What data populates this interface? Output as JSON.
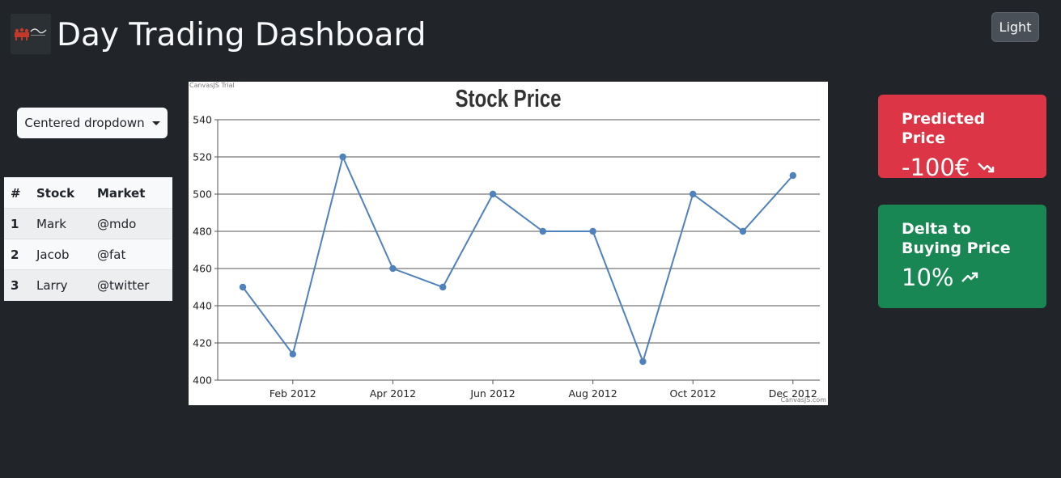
{
  "app": {
    "title": "Day Trading Dashboard",
    "theme_toggle_label": "Light"
  },
  "dropdown": {
    "label": "Centered dropdown"
  },
  "table": {
    "headers": [
      "#",
      "Stock",
      "Market"
    ],
    "rows": [
      [
        "1",
        "Mark",
        "@mdo"
      ],
      [
        "2",
        "Jacob",
        "@fat"
      ],
      [
        "3",
        "Larry",
        "@twitter"
      ]
    ]
  },
  "chart_watermark_top": "CanvasJS Trial",
  "chart_watermark_bottom": "CanvasJS.com",
  "chart_data": {
    "type": "line",
    "title": "Stock Price",
    "x": [
      "2012-01",
      "2012-02",
      "2012-03",
      "2012-04",
      "2012-05",
      "2012-06",
      "2012-07",
      "2012-08",
      "2012-09",
      "2012-10",
      "2012-11",
      "2012-12"
    ],
    "values": [
      450,
      414,
      520,
      460,
      450,
      500,
      480,
      480,
      410,
      500,
      480,
      510
    ],
    "x_tick_labels": [
      "Feb 2012",
      "Apr 2012",
      "Jun 2012",
      "Aug 2012",
      "Oct 2012",
      "Dec 2012"
    ],
    "y_ticks": [
      400,
      420,
      440,
      460,
      480,
      500,
      520,
      540
    ],
    "ylim": [
      400,
      540
    ],
    "grid": true,
    "color": "#4f81bc"
  },
  "cards": {
    "predicted": {
      "title": "Predicted Price",
      "value": "-100€",
      "trend_icon": "trending-down-icon",
      "color": "#dc3545"
    },
    "delta": {
      "title": "Delta to Buying Price",
      "value": "10%",
      "trend_icon": "trending-up-icon",
      "color": "#198754"
    }
  }
}
